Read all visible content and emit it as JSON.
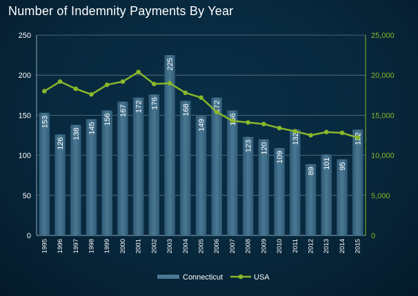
{
  "chart_data": {
    "type": "bar",
    "title": "Number of Indemnity  Payments By Year",
    "categories": [
      "1995",
      "1996",
      "1997",
      "1998",
      "1999",
      "2000",
      "2001",
      "2002",
      "2003",
      "2004",
      "2005",
      "2006",
      "2007",
      "2008",
      "2009",
      "2010",
      "2011",
      "2012",
      "2013",
      "2014",
      "2015"
    ],
    "series": [
      {
        "name": "Connecticut",
        "kind": "bar",
        "axis": "left",
        "color": "#3d6a85",
        "values": [
          153,
          126,
          138,
          145,
          156,
          167,
          172,
          176,
          225,
          168,
          149,
          172,
          156,
          123,
          120,
          109,
          132,
          89,
          101,
          95,
          132
        ]
      },
      {
        "name": "USA",
        "kind": "line",
        "axis": "right",
        "color": "#8ab82a",
        "values": [
          18000,
          19200,
          18300,
          17600,
          18800,
          19200,
          20400,
          18900,
          19000,
          17800,
          17200,
          15400,
          14300,
          14100,
          13900,
          13400,
          13000,
          12500,
          12900,
          12800,
          12200
        ]
      }
    ],
    "y_left": {
      "ticks": [
        "0",
        "50",
        "100",
        "150",
        "200",
        "250"
      ],
      "lim": [
        0,
        250
      ]
    },
    "y_right": {
      "ticks": [
        "0",
        "5,000",
        "10,000",
        "15,000",
        "20,000",
        "25,000"
      ],
      "lim": [
        0,
        25000
      ]
    },
    "grid": true,
    "legend": "bottom-center"
  }
}
